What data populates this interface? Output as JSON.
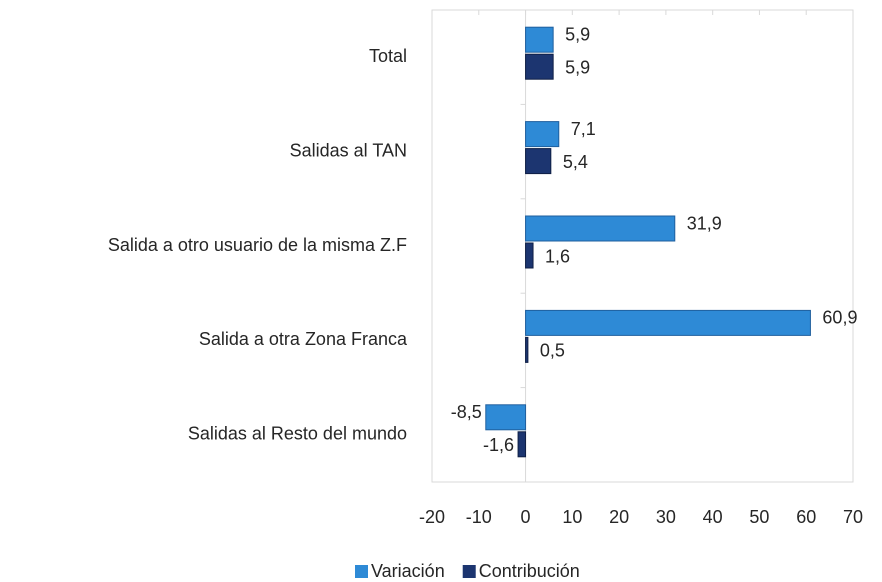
{
  "chart_data": {
    "type": "bar",
    "orientation": "horizontal",
    "categories": [
      "Total",
      "Salidas al TAN",
      "Salida a otro usuario de la misma Z.F",
      "Salida a otra Zona Franca",
      "Salidas al Resto del mundo"
    ],
    "series": [
      {
        "name": "Variación",
        "color": "#2e8ad6",
        "values": [
          5.9,
          7.1,
          31.9,
          60.9,
          -8.5
        ],
        "value_labels": [
          "5,9",
          "7,1",
          "31,9",
          "60,9",
          "-8,5"
        ]
      },
      {
        "name": "Contribución",
        "color": "#1c3570",
        "values": [
          5.9,
          5.4,
          1.6,
          0.5,
          -1.6
        ],
        "value_labels": [
          "5,9",
          "5,4",
          "1,6",
          "0,5",
          "-1,6"
        ]
      }
    ],
    "xlim": [
      -20,
      70
    ],
    "xticks": [
      -20,
      -10,
      0,
      10,
      20,
      30,
      40,
      50,
      60,
      70
    ],
    "legend": "bottom"
  }
}
